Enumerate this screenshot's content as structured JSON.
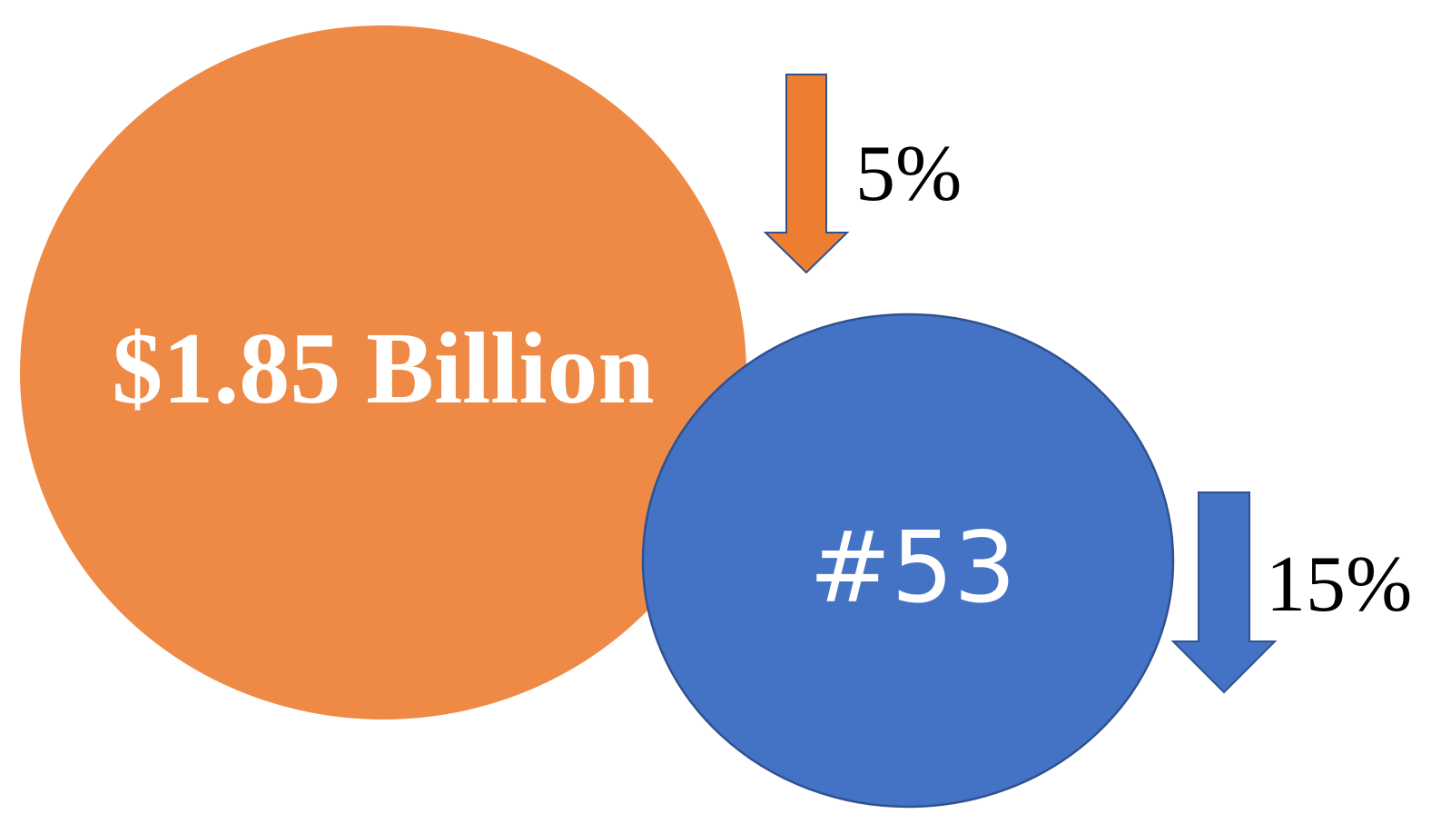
{
  "colors": {
    "orange": "#ee8a45",
    "blue": "#4472c4",
    "blue_outline": "#2f528f",
    "arrow_orange": "#ed7d31",
    "text_light": "#ffffff",
    "text_dark": "#000000"
  },
  "revenue": {
    "value_label": "$1.85 Billion",
    "change_label": "5%",
    "change_direction": "down",
    "arrow_icon": "arrow-down-icon"
  },
  "rank": {
    "value_label": "#53",
    "change_label": "15%",
    "change_direction": "down",
    "arrow_icon": "arrow-down-icon"
  }
}
